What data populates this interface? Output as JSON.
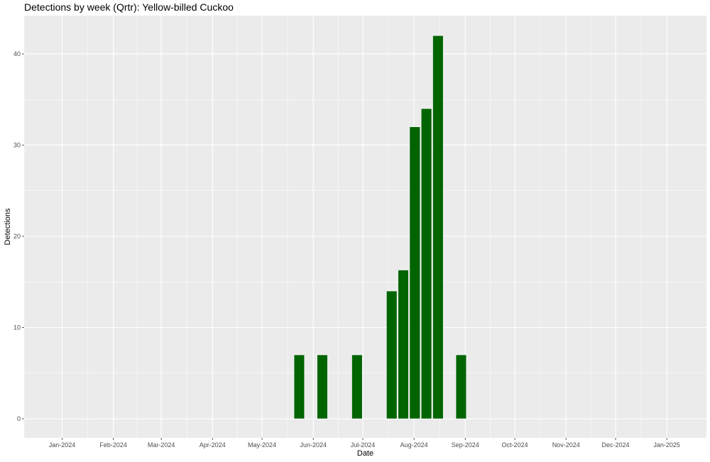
{
  "chart_data": {
    "type": "bar",
    "title": "Detections by week (Qrtr): Yellow-billed Cuckoo",
    "xlabel": "Date",
    "ylabel": "Detections",
    "x_tick_labels": [
      "Jan-2024",
      "Feb-2024",
      "Mar-2024",
      "Apr-2024",
      "May-2024",
      "Jun-2024",
      "Jul-2024",
      "Aug-2024",
      "Sep-2024",
      "Oct-2024",
      "Nov-2024",
      "Dec-2024",
      "Jan-2025"
    ],
    "y_ticks": [
      0,
      10,
      20,
      30,
      40
    ],
    "ylim": [
      -2.1,
      44.2
    ],
    "xlim": [
      "2023-12-09",
      "2025-01-25"
    ],
    "grid": true,
    "bar_color": "#006400",
    "panel_color": "#EBEBEB",
    "weeks": [
      "2024-05-20",
      "2024-06-03",
      "2024-06-24",
      "2024-07-15",
      "2024-07-22",
      "2024-07-29",
      "2024-08-05",
      "2024-08-12",
      "2024-08-26"
    ],
    "values": [
      7,
      7,
      7,
      14,
      16.3,
      32,
      34,
      42,
      7
    ]
  }
}
